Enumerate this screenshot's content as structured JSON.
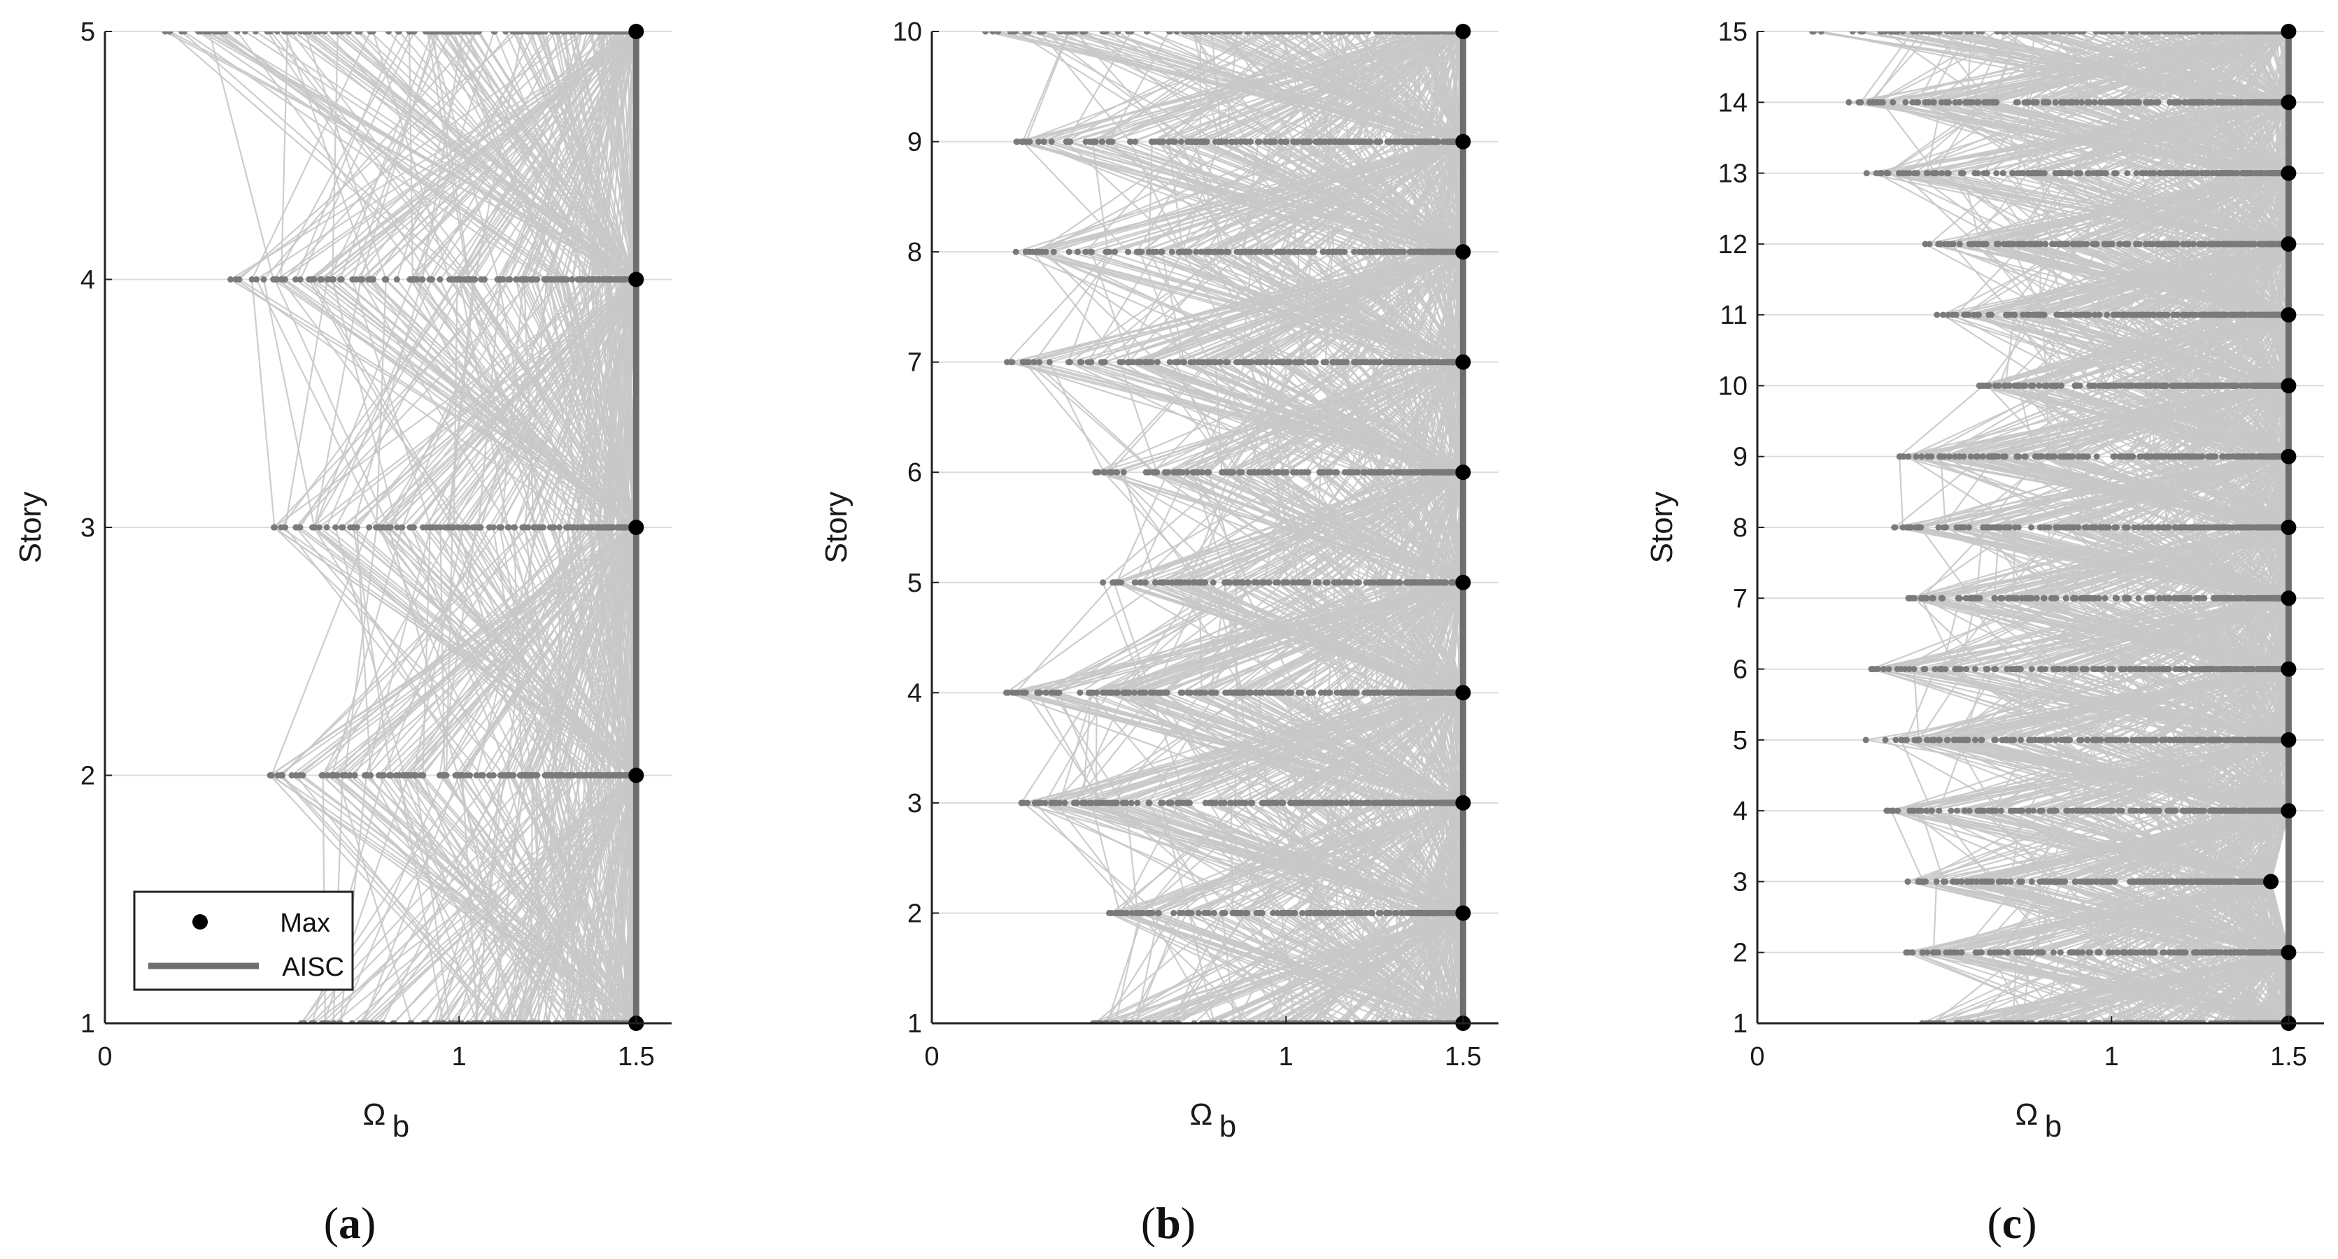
{
  "colors": {
    "trace": "#c8c8c8",
    "dot": "#7a7a7a",
    "max": "#000000",
    "aisc": "#6e6e6e",
    "grid": "#dcdcdc",
    "axis": "#222222"
  },
  "legend": {
    "max_label": "Max",
    "aisc_label": "AISC"
  },
  "chart_data": [
    {
      "type": "line",
      "panel_label": "(a)",
      "xlabel": "Ω",
      "xlabel_sub": "b",
      "ylabel": "Story",
      "xlim": [
        0,
        1.6
      ],
      "ylim": [
        1,
        5
      ],
      "xticks": [
        0,
        1,
        1.5
      ],
      "xtick_labels": [
        "0",
        "1",
        "1.5"
      ],
      "yticks": [
        1,
        2,
        3,
        4,
        5
      ],
      "ytick_labels": [
        "1",
        "2",
        "3",
        "4",
        "5"
      ],
      "grid": "horizontal",
      "legend_position": "bottom-left",
      "stories": [
        1,
        2,
        3,
        4,
        5
      ],
      "min_omega_per_story": [
        0.55,
        0.45,
        0.47,
        0.31,
        0.16
      ],
      "max_per_story": [
        1.5,
        1.5,
        1.5,
        1.5,
        1.5
      ],
      "aisc_omega": 1.5
    },
    {
      "type": "line",
      "panel_label": "(b)",
      "xlabel": "Ω",
      "xlabel_sub": "b",
      "ylabel": "Story",
      "xlim": [
        0,
        1.6
      ],
      "ylim": [
        1,
        10
      ],
      "xticks": [
        0,
        1,
        1.5
      ],
      "xtick_labels": [
        "0",
        "1",
        "1.5"
      ],
      "yticks": [
        1,
        2,
        3,
        4,
        5,
        6,
        7,
        8,
        9,
        10
      ],
      "ytick_labels": [
        "1",
        "2",
        "3",
        "4",
        "5",
        "6",
        "7",
        "8",
        "9",
        "10"
      ],
      "grid": "horizontal",
      "stories": [
        1,
        2,
        3,
        4,
        5,
        6,
        7,
        8,
        9,
        10
      ],
      "min_omega_per_story": [
        0.45,
        0.5,
        0.25,
        0.21,
        0.48,
        0.46,
        0.21,
        0.22,
        0.23,
        0.15
      ],
      "max_per_story": [
        1.5,
        1.5,
        1.5,
        1.5,
        1.5,
        1.5,
        1.5,
        1.5,
        1.5,
        1.5
      ],
      "aisc_omega": 1.5
    },
    {
      "type": "line",
      "panel_label": "(c)",
      "xlabel": "Ω",
      "xlabel_sub": "b",
      "ylabel": "Story",
      "xlim": [
        0,
        1.6
      ],
      "ylim": [
        1,
        15
      ],
      "xticks": [
        0,
        1,
        1.5
      ],
      "xtick_labels": [
        "0",
        "1",
        "1.5"
      ],
      "yticks": [
        1,
        2,
        3,
        4,
        5,
        6,
        7,
        8,
        9,
        10,
        11,
        12,
        13,
        14,
        15
      ],
      "ytick_labels": [
        "1",
        "2",
        "3",
        "4",
        "5",
        "6",
        "7",
        "8",
        "9",
        "10",
        "11",
        "12",
        "13",
        "14",
        "15"
      ],
      "grid": "horizontal",
      "stories": [
        1,
        2,
        3,
        4,
        5,
        6,
        7,
        8,
        9,
        10,
        11,
        12,
        13,
        14,
        15
      ],
      "min_omega_per_story": [
        0.45,
        0.42,
        0.42,
        0.35,
        0.3,
        0.32,
        0.42,
        0.37,
        0.4,
        0.6,
        0.5,
        0.47,
        0.3,
        0.24,
        0.15
      ],
      "max_per_story": [
        1.5,
        1.5,
        1.45,
        1.5,
        1.5,
        1.5,
        1.5,
        1.5,
        1.5,
        1.5,
        1.5,
        1.5,
        1.5,
        1.5,
        1.5
      ],
      "aisc_omega": 1.5
    }
  ]
}
